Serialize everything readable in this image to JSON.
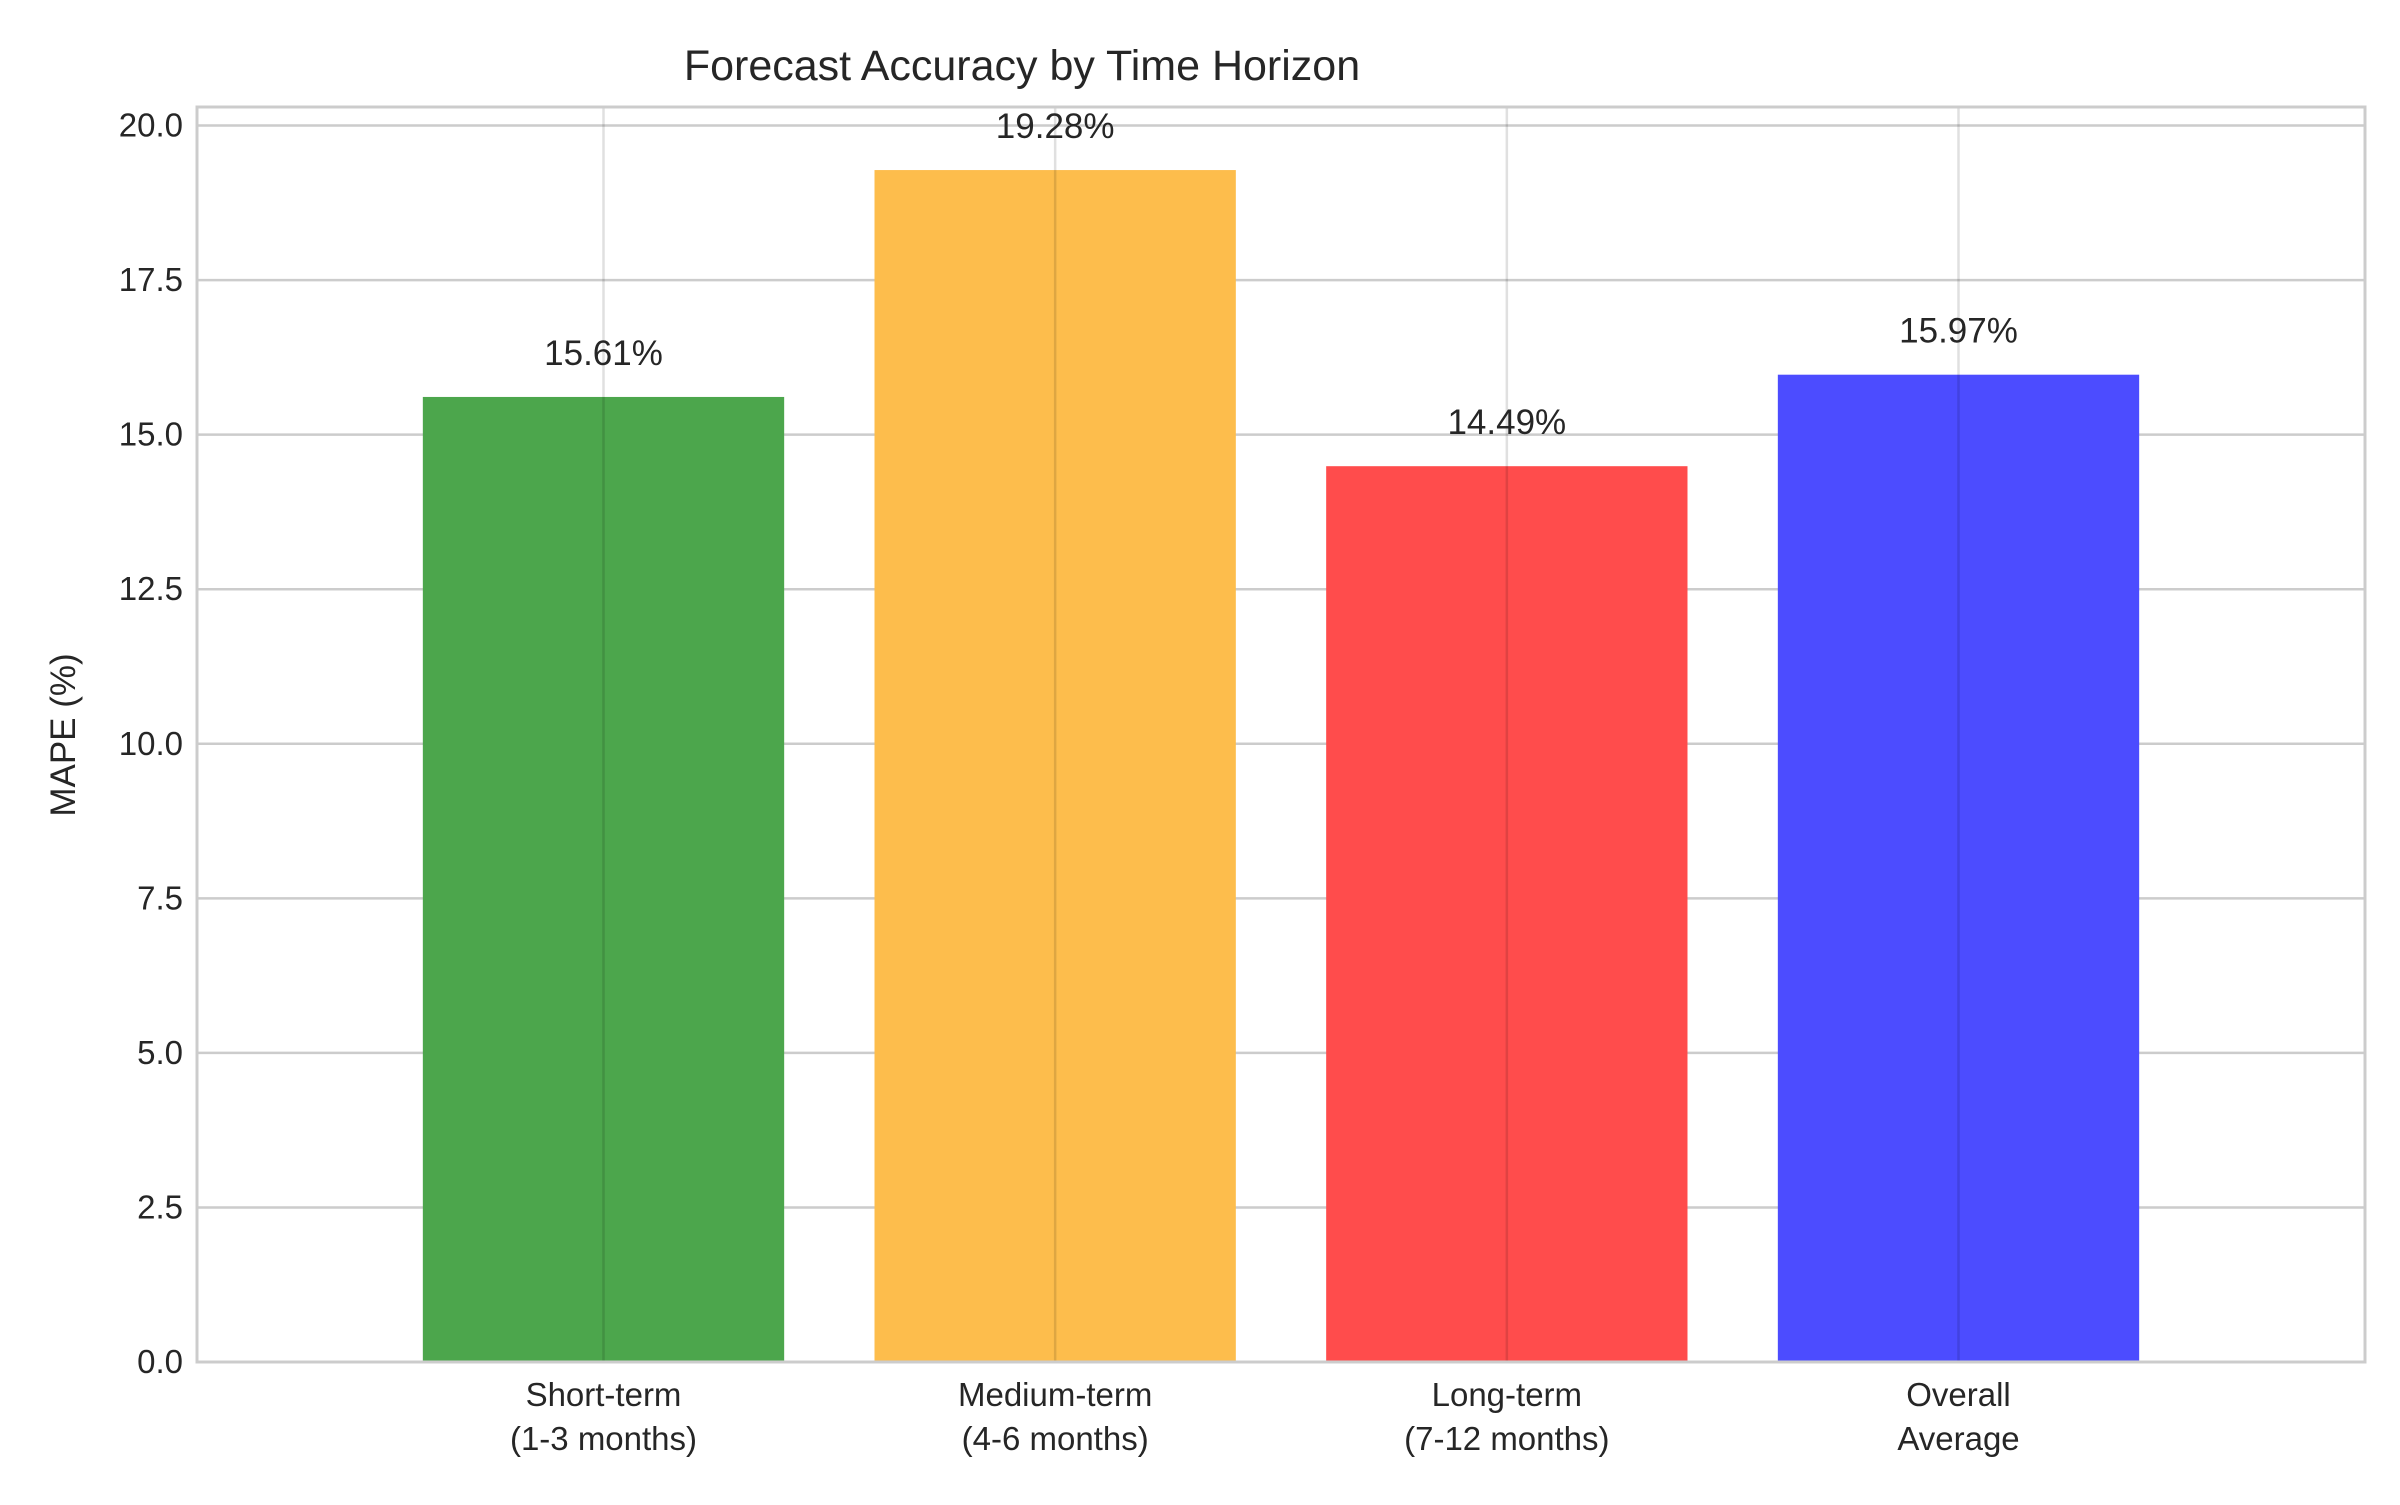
{
  "chart_data": {
    "type": "bar",
    "title": "Forecast Accuracy by Time Horizon",
    "xlabel": "",
    "ylabel": "MAPE (%)",
    "ylim": [
      0,
      20.3
    ],
    "yticks": [
      "0.0",
      "2.5",
      "5.0",
      "7.5",
      "10.0",
      "12.5",
      "15.0",
      "17.5",
      "20.0"
    ],
    "categories": [
      [
        "Short-term",
        "(1-3 months)"
      ],
      [
        "Medium-term",
        "(4-6 months)"
      ],
      [
        "Long-term",
        "(7-12 months)"
      ],
      [
        "Overall",
        "Average"
      ]
    ],
    "values": [
      15.61,
      19.28,
      14.49,
      15.97
    ],
    "value_labels": [
      "15.61%",
      "19.28%",
      "14.49%",
      "15.97%"
    ],
    "colors": [
      "#4ca64c",
      "#fdbd4c",
      "#ff4c4c",
      "#4c4cff"
    ],
    "grid": true
  }
}
